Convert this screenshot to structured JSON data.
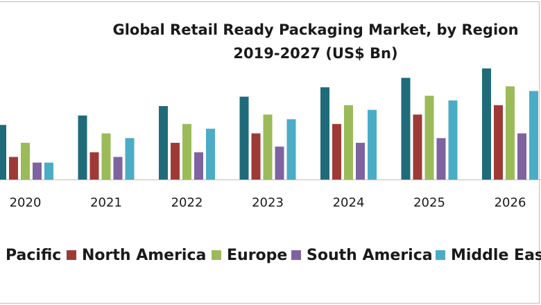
{
  "chart_data": {
    "type": "bar",
    "title": "Global Retail Ready Packaging Market, by Region",
    "subtitle": "2019-2027 (US$ Bn)",
    "categories": [
      "2020",
      "2021",
      "2022",
      "2023",
      "2024",
      "2025",
      "2026"
    ],
    "series": [
      {
        "name": "Asia Pacific",
        "color": "#1f6b7a",
        "values": [
          5.8,
          6.8,
          7.8,
          8.8,
          9.8,
          10.8,
          11.8
        ]
      },
      {
        "name": "North America",
        "color": "#9e3a36",
        "values": [
          2.4,
          2.9,
          3.9,
          4.9,
          5.9,
          6.9,
          7.9
        ]
      },
      {
        "name": "Europe",
        "color": "#9bbb59",
        "values": [
          3.9,
          4.9,
          5.9,
          6.9,
          7.9,
          8.9,
          9.9
        ]
      },
      {
        "name": "South America",
        "color": "#7f63a1",
        "values": [
          1.8,
          2.4,
          2.9,
          3.5,
          3.9,
          4.4,
          4.9
        ]
      },
      {
        "name": "Middle East",
        "color": "#4bacc6",
        "values": [
          1.8,
          4.4,
          5.4,
          6.4,
          7.4,
          8.4,
          9.4
        ]
      }
    ],
    "ylim": [
      0,
      12
    ],
    "grid": false,
    "legend_position": "bottom",
    "legend_labels": [
      "Pacific",
      "North America",
      "Europe",
      "South America",
      "Middle East"
    ]
  }
}
